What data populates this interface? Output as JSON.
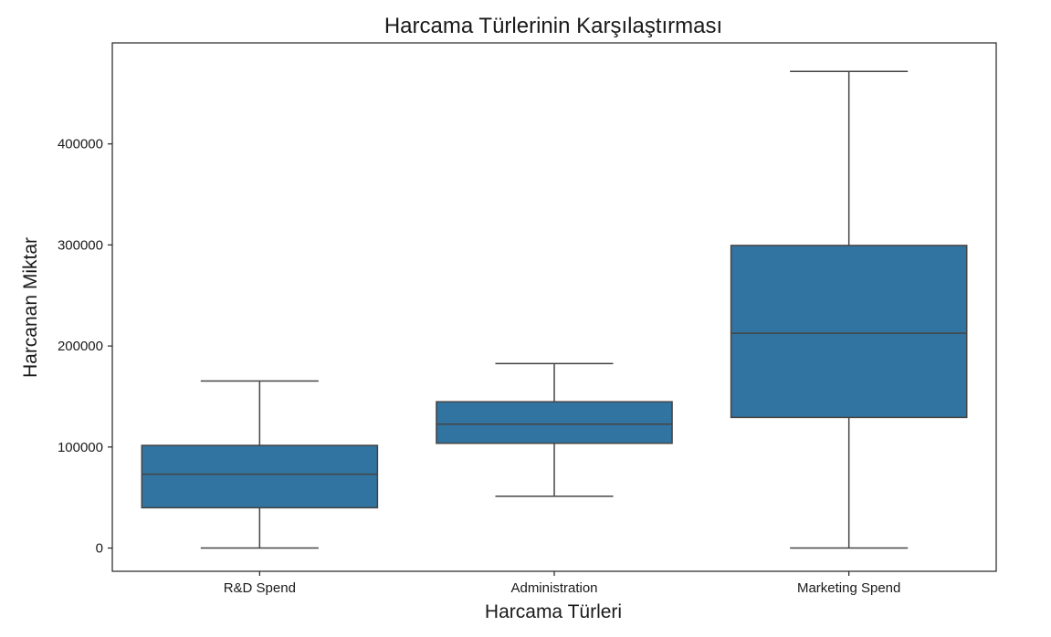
{
  "chart_data": {
    "type": "box",
    "title": "Harcama Türlerinin Karşılaştırması",
    "xlabel": "Harcama Türleri",
    "ylabel": "Harcanan Miktar",
    "ylim": [
      -23000,
      500000
    ],
    "yticks": [
      0,
      100000,
      200000,
      300000,
      400000
    ],
    "ytick_labels": [
      "0",
      "100000",
      "200000",
      "300000",
      "400000"
    ],
    "categories": [
      "R&D Spend",
      "Administration",
      "Marketing Spend"
    ],
    "box_color": "#3274a1",
    "boxes": [
      {
        "name": "R&D Spend",
        "min": 0,
        "q1": 39900,
        "median": 73050,
        "q3": 101600,
        "max": 165350
      },
      {
        "name": "Administration",
        "min": 51300,
        "q1": 103700,
        "median": 122700,
        "q3": 144800,
        "max": 182650
      },
      {
        "name": "Marketing Spend",
        "min": 0,
        "q1": 129300,
        "median": 212700,
        "q3": 299500,
        "max": 471800
      }
    ],
    "grid": false
  }
}
